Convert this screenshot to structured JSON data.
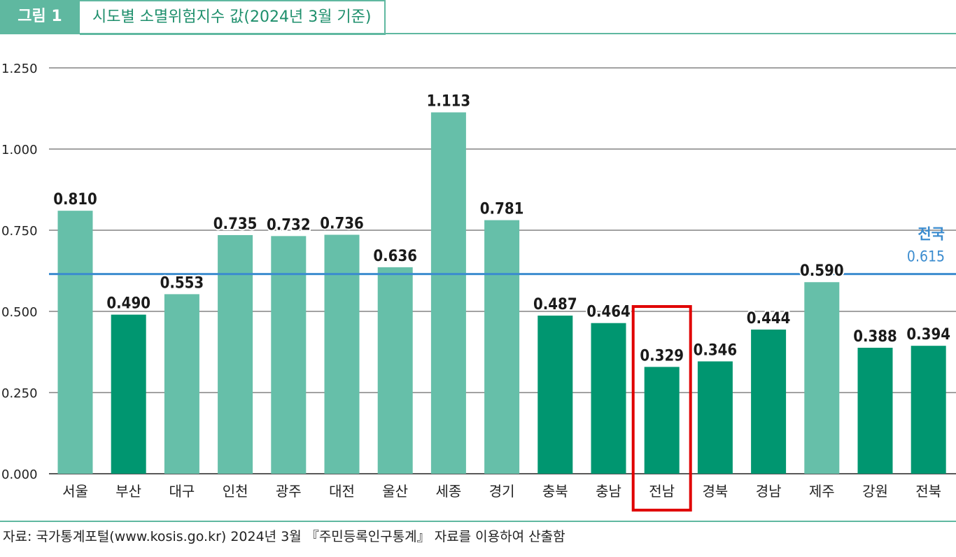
{
  "figure_label": "그림 1",
  "title": "시도별 소멸위험지수 값(2024년 3월 기준)",
  "source_note": "자료: 국가통계포털(www.kosis.go.kr) 2024년 3월 『주민등록인구통계』 자료를 이용하여 산출함",
  "colors": {
    "light": "#66bfa9",
    "dark": "#009670",
    "national": "#3b8ccf",
    "highlight": "#e00000"
  },
  "chart_data": {
    "type": "bar",
    "categories": [
      "서울",
      "부산",
      "대구",
      "인천",
      "광주",
      "대전",
      "울산",
      "세종",
      "경기",
      "충북",
      "충남",
      "전남",
      "경북",
      "경남",
      "제주",
      "강원",
      "전북"
    ],
    "values": [
      0.81,
      0.49,
      0.553,
      0.735,
      0.732,
      0.736,
      0.636,
      1.113,
      0.781,
      0.487,
      0.464,
      0.329,
      0.346,
      0.444,
      0.59,
      0.388,
      0.394
    ],
    "value_labels": [
      "0.810",
      "0.490",
      "0.553",
      "0.735",
      "0.732",
      "0.736",
      "0.636",
      "1.113",
      "0.781",
      "0.487",
      "0.464",
      "0.329",
      "0.346",
      "0.444",
      "0.590",
      "0.388",
      "0.394"
    ],
    "bar_color_groups": [
      "light",
      "dark",
      "light",
      "light",
      "light",
      "light",
      "light",
      "light",
      "light",
      "dark",
      "dark",
      "dark",
      "dark",
      "dark",
      "light",
      "dark",
      "dark"
    ],
    "ylim": [
      0,
      1.25
    ],
    "yticks": [
      0,
      0.25,
      0.5,
      0.75,
      1.0,
      1.25
    ],
    "ytick_labels": [
      "0.000",
      "0.250",
      "0.500",
      "0.750",
      "1.000",
      "1.250"
    ],
    "grid": true,
    "reference_line": {
      "label": "전국",
      "value": 0.615,
      "value_label": "0.615"
    },
    "highlighted_category": "전남"
  }
}
